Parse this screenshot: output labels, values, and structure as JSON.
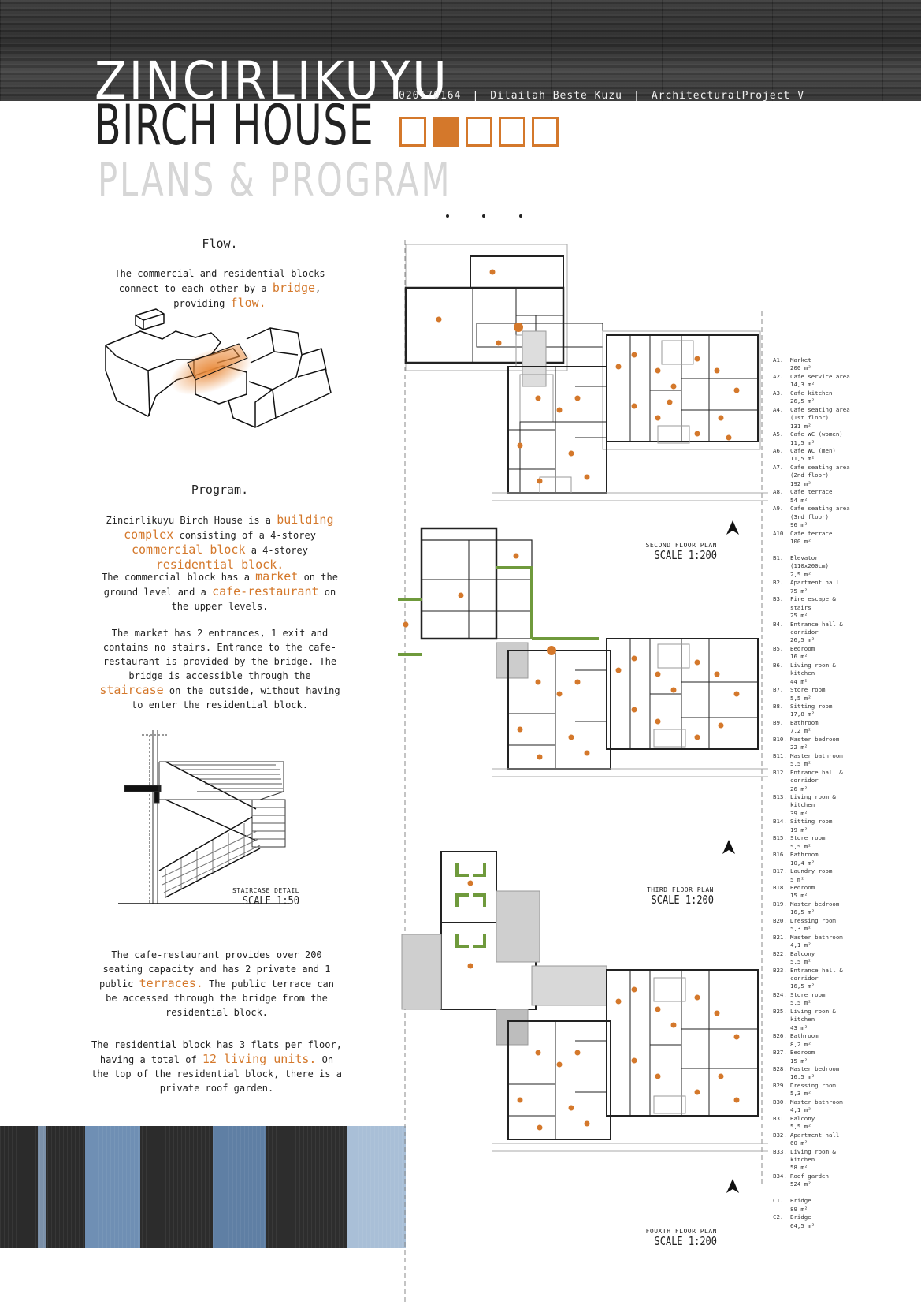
{
  "header": {
    "title_line1": "ZINCIRLIKUYU",
    "title_line2": "BIRCH HOUSE",
    "title_line3": "PLANS & PROGRAM",
    "student_no": "020170164",
    "author": "Dilailah Beste Kuzu",
    "course": "ArchitecturalProject V"
  },
  "flow": {
    "heading": "Flow.",
    "text_a": "The commercial and residential blocks connect to each other by a ",
    "hl_a": "bridge",
    "text_b": ", providing ",
    "hl_b": "flow."
  },
  "program": {
    "heading": "Program.",
    "p1": {
      "t1": "Zincirlikuyu Birch House is a ",
      "h1": "building complex",
      "t2": " consisting of a 4-storey ",
      "h2": "commercial block",
      "t3": " a 4-storey ",
      "h3": "residential block."
    },
    "p2": {
      "t1": "The commercial block has a ",
      "h1": "market",
      "t2": " on the ground level and a ",
      "h2": "cafe-restaurant",
      "t3": " on the upper levels."
    },
    "p3": {
      "t1": "The market has 2 entrances, 1 exit and contains no stairs. Entrance to the cafe-restaurant is provided by the bridge. The bridge is accessible through the ",
      "h1": "staircase",
      "t2": " on the outside, without having to enter the residential block."
    },
    "p4": {
      "t1": "The cafe-restaurant provides over 200 seating capacity and has 2 private and 1 public ",
      "h1": "terraces.",
      "t2": " The public terrace can be accessed through the bridge from the residential block."
    },
    "p5": {
      "t1": "The residential block has 3 flats per floor, having a total of ",
      "h1": "12 living units.",
      "t2": " On the top of the residential block, there is a private roof garden."
    }
  },
  "staircase": {
    "label": "STAIRCASE DETAIL",
    "scale": "SCALE 1:50"
  },
  "plans": [
    {
      "label": "SECOND FLOOR PLAN",
      "scale": "SCALE 1:200"
    },
    {
      "label": "THIRD FLOOR PLAN",
      "scale": "SCALE 1:200"
    },
    {
      "label": "FOUXTH FLOOR PLAN",
      "scale": "SCALE 1:200"
    }
  ],
  "legend": [
    {
      "code": "A1.",
      "name": "Market",
      "area": "200 m²"
    },
    {
      "code": "A2.",
      "name": "Cafe service area",
      "area": "14,3 m²"
    },
    {
      "code": "A3.",
      "name": "Cafe kitchen",
      "area": "26,5 m²"
    },
    {
      "code": "A4.",
      "name": "Cafe seating area",
      "sub": "(1st floor)",
      "area": "131 m²"
    },
    {
      "code": "A5.",
      "name": "Cafe WC (women)",
      "area": "11,5 m²"
    },
    {
      "code": "A6.",
      "name": "Cafe WC (men)",
      "area": "11,5 m²"
    },
    {
      "code": "A7.",
      "name": "Cafe seating area",
      "sub": "(2nd floor)",
      "area": "192 m²"
    },
    {
      "code": "A8.",
      "name": "Cafe terrace",
      "area": "54 m²"
    },
    {
      "code": "A9.",
      "name": "Cafe seating area",
      "sub": "(3rd floor)",
      "area": "96 m²"
    },
    {
      "code": "A10.",
      "name": "Cafe terrace",
      "area": "100 m²"
    },
    {
      "code": "",
      "name": "",
      "area": ""
    },
    {
      "code": "B1.",
      "name": "Elevator (110x200cm)",
      "area": "2,5 m²"
    },
    {
      "code": "B2.",
      "name": "Apartment hall",
      "area": "75 m²"
    },
    {
      "code": "B3.",
      "name": "Fire escape & stairs",
      "area": "25 m²"
    },
    {
      "code": "B4.",
      "name": "Entrance hall & corridor",
      "area": "26,5 m²"
    },
    {
      "code": "B5.",
      "name": "Bedroom",
      "area": "16 m²"
    },
    {
      "code": "B6.",
      "name": "Living room & kitchen",
      "area": "44 m²"
    },
    {
      "code": "B7.",
      "name": "Store room",
      "area": "5,5 m²"
    },
    {
      "code": "B8.",
      "name": "Sitting room",
      "area": "17,8 m²"
    },
    {
      "code": "B9.",
      "name": "Bathroom",
      "area": "7,2 m²"
    },
    {
      "code": "B10.",
      "name": "Master bedroom",
      "area": "22 m²"
    },
    {
      "code": "B11.",
      "name": "Master bathroom",
      "area": "5,5 m²"
    },
    {
      "code": "B12.",
      "name": "Entrance hall & corridor",
      "area": "26 m²"
    },
    {
      "code": "B13.",
      "name": "Living room & kitchen",
      "area": "39 m²"
    },
    {
      "code": "B14.",
      "name": "Sitting room",
      "area": "19 m²"
    },
    {
      "code": "B15.",
      "name": "Store room",
      "area": "5,5 m²"
    },
    {
      "code": "B16.",
      "name": "Bathroom",
      "area": "10,4 m²"
    },
    {
      "code": "B17.",
      "name": "Laundry room",
      "area": "5 m²"
    },
    {
      "code": "B18.",
      "name": "Bedroom",
      "area": "15 m²"
    },
    {
      "code": "B19.",
      "name": "Master bedroom",
      "area": "16,5 m²"
    },
    {
      "code": "B20.",
      "name": "Dressing room",
      "area": "5,3 m²"
    },
    {
      "code": "B21.",
      "name": "Master bathroom",
      "area": "4,1 m²"
    },
    {
      "code": "B22.",
      "name": "Balcony",
      "area": "5,5 m²"
    },
    {
      "code": "B23.",
      "name": "Entrance hall & corridor",
      "area": "16,5 m²"
    },
    {
      "code": "B24.",
      "name": "Store room",
      "area": "5,5 m²"
    },
    {
      "code": "B25.",
      "name": "Living room & kitchen",
      "area": "43 m²"
    },
    {
      "code": "B26.",
      "name": "Bathroom",
      "area": "8,2 m²"
    },
    {
      "code": "B27.",
      "name": "Bedroom",
      "area": "15 m²"
    },
    {
      "code": "B28.",
      "name": "Master bedroom",
      "area": "16,5 m²"
    },
    {
      "code": "B29.",
      "name": "Dressing room",
      "area": "5,3 m²"
    },
    {
      "code": "B30.",
      "name": "Master bathroom",
      "area": "4,1 m²"
    },
    {
      "code": "B31.",
      "name": "Balcony",
      "area": "5,5 m²"
    },
    {
      "code": "B32.",
      "name": "Apartment hall",
      "area": "60 m²"
    },
    {
      "code": "B33.",
      "name": "Living room & kitchen",
      "area": "58 m²"
    },
    {
      "code": "B34.",
      "name": "Roof garden",
      "area": "524 m²"
    },
    {
      "code": "",
      "name": "",
      "area": ""
    },
    {
      "code": "C1.",
      "name": "Bridge",
      "area": "89 m²"
    },
    {
      "code": "C2.",
      "name": "Bridge",
      "area": "64,5 m²"
    }
  ],
  "colors": {
    "accent": "#d4782b",
    "green": "#6f9a3c",
    "grey_fill": "#cfcfcf"
  }
}
